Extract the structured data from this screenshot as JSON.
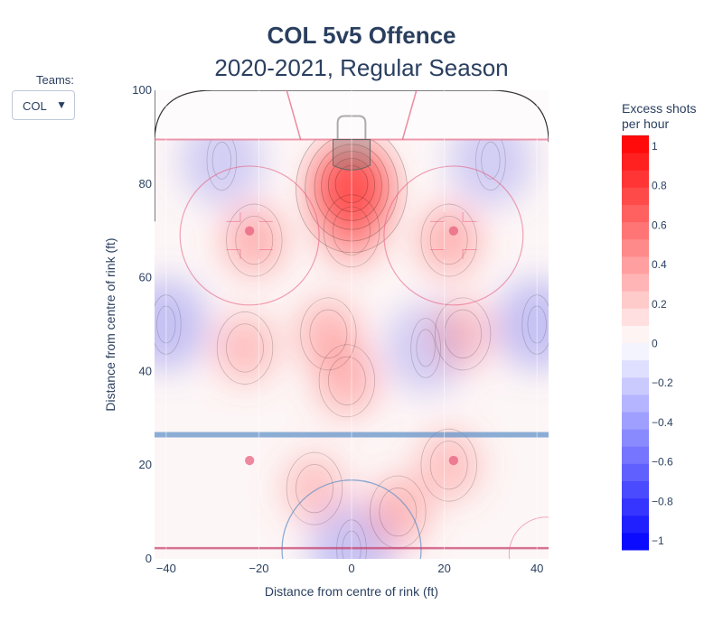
{
  "title": "COL 5v5 Offence",
  "subtitle": "2020-2021, Regular Season",
  "teams_control": {
    "label": "Teams:",
    "selected": "COL"
  },
  "colorbar": {
    "title_line1": "Excess shots",
    "title_line2": "per hour",
    "range": [
      -1.05,
      1.05
    ],
    "tick_values": [
      1,
      0.8,
      0.6,
      0.4,
      0.2,
      0,
      -0.2,
      -0.4,
      -0.6,
      -0.8,
      -1
    ],
    "tick_labels": [
      "1",
      "0.8",
      "0.6",
      "0.4",
      "0.2",
      "0",
      "−0.2",
      "−0.4",
      "−0.6",
      "−0.8",
      "−1"
    ],
    "color_high": "#ff0000",
    "color_mid": "#ffffff",
    "color_low": "#0000ff"
  },
  "chart_data": {
    "type": "contour",
    "xlabel": "Distance from centre of rink (ft)",
    "ylabel": "Distance from centre of rink (ft)",
    "xlim": [
      -42.5,
      42.5
    ],
    "ylim": [
      0,
      100
    ],
    "x_ticks": [
      -40,
      -20,
      0,
      20,
      40
    ],
    "x_tick_labels": [
      "−40",
      "−20",
      "0",
      "20",
      "40"
    ],
    "y_ticks": [
      0,
      20,
      40,
      60,
      80,
      100
    ],
    "y_tick_labels": [
      "0",
      "20",
      "40",
      "60",
      "80",
      "100"
    ],
    "hotspots": [
      {
        "x": 0,
        "y": 79,
        "value": 0.95
      },
      {
        "x": 0,
        "y": 70,
        "value": 0.35
      },
      {
        "x": -21,
        "y": 68,
        "value": 0.25
      },
      {
        "x": 21,
        "y": 68,
        "value": 0.25
      },
      {
        "x": -23,
        "y": 45,
        "value": 0.15
      },
      {
        "x": -5,
        "y": 48,
        "value": 0.2
      },
      {
        "x": -1,
        "y": 38,
        "value": 0.2
      },
      {
        "x": 24,
        "y": 48,
        "value": 0.1
      },
      {
        "x": 10,
        "y": 10,
        "value": 0.2
      },
      {
        "x": -8,
        "y": 15,
        "value": 0.1
      },
      {
        "x": 21,
        "y": 20,
        "value": 0.12
      }
    ],
    "coldspots": [
      {
        "x": -40,
        "y": 50,
        "value": -0.3
      },
      {
        "x": 40,
        "y": 50,
        "value": -0.3
      },
      {
        "x": 30,
        "y": 85,
        "value": -0.15
      },
      {
        "x": -28,
        "y": 85,
        "value": -0.12
      },
      {
        "x": 16,
        "y": 45,
        "value": -0.12
      },
      {
        "x": 0,
        "y": 2,
        "value": -0.25
      }
    ],
    "blue_line_y": 26.5,
    "goal_line_y": 89.5,
    "rink_color": "#8fb3d9",
    "red_line_color": "#e55a7a"
  }
}
